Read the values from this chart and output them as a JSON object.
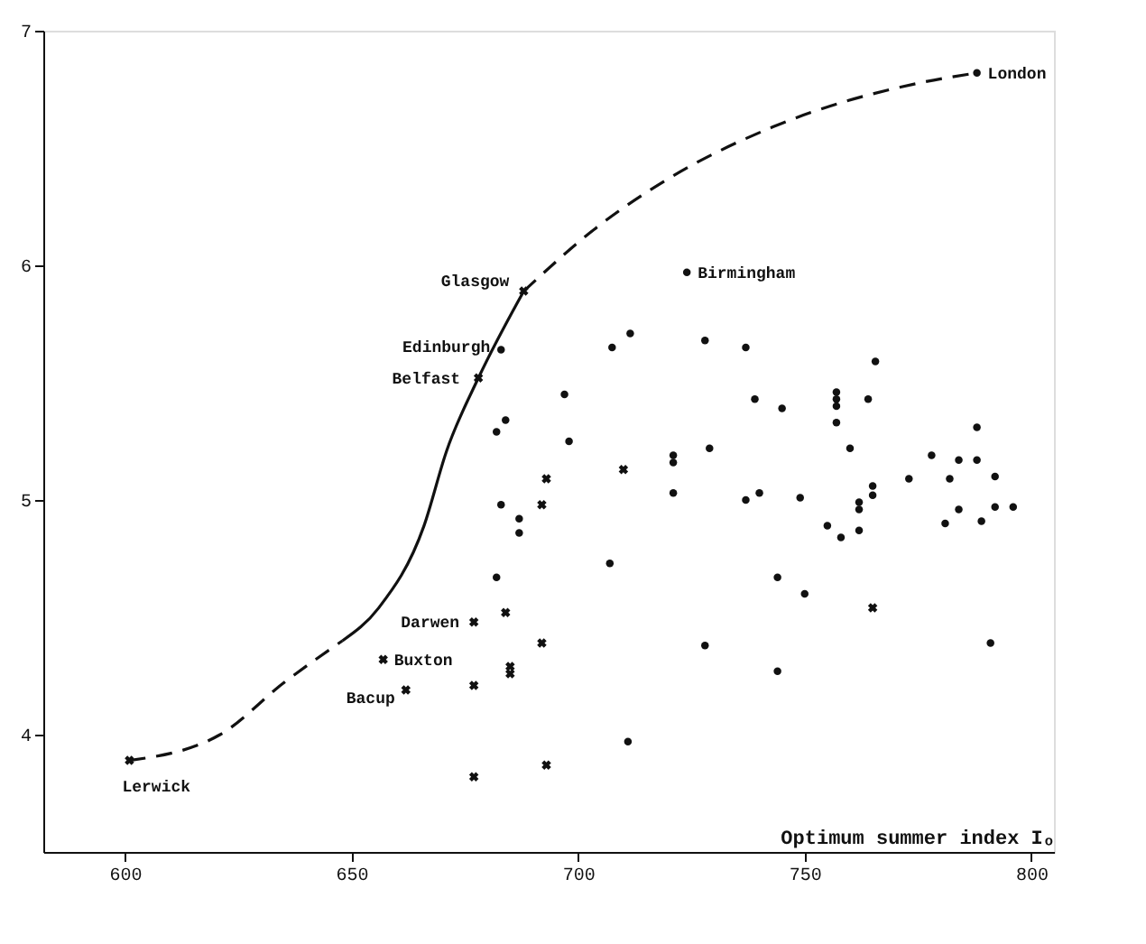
{
  "chart_data": {
    "type": "scatter",
    "xlabel": "Optimum summer index Iₒ",
    "xlim": [
      582,
      805
    ],
    "ylim": [
      3.5,
      7
    ],
    "xticks": [
      600,
      650,
      700,
      750,
      800
    ],
    "yticks": [
      4,
      5,
      6,
      7
    ],
    "grid": false,
    "series": [
      {
        "marker": "circle",
        "color": "#111111",
        "x": [
          788,
          724,
          683,
          707.5,
          711.5,
          728,
          737,
          765.6,
          697,
          739,
          745,
          757,
          757,
          757,
          764,
          757,
          682,
          684,
          698,
          788,
          721,
          721,
          729,
          760,
          778,
          683,
          687,
          687,
          682,
          721,
          737,
          740,
          749,
          755,
          758,
          762,
          762,
          762,
          765,
          765,
          773,
          782,
          781,
          784,
          788,
          784,
          789,
          792,
          792,
          796,
          791,
          707,
          711,
          728,
          744,
          744,
          750
        ],
        "values": [
          6.82,
          5.97,
          5.64,
          5.65,
          5.71,
          5.68,
          5.65,
          5.59,
          5.45,
          5.43,
          5.39,
          5.46,
          5.43,
          5.4,
          5.43,
          5.33,
          5.29,
          5.34,
          5.25,
          5.31,
          5.19,
          5.16,
          5.22,
          5.22,
          5.19,
          4.98,
          4.92,
          4.86,
          4.67,
          5.03,
          5.0,
          5.03,
          5.01,
          4.89,
          4.84,
          4.99,
          4.96,
          4.87,
          5.02,
          5.06,
          5.09,
          5.09,
          4.9,
          5.17,
          5.17,
          4.96,
          4.91,
          5.1,
          4.97,
          4.97,
          4.39,
          4.73,
          3.97,
          4.38,
          4.67,
          4.27,
          4.6
        ]
      },
      {
        "marker": "cross",
        "color": "#111111",
        "x": [
          601,
          688,
          678,
          677,
          657,
          662,
          677,
          677,
          693,
          692,
          710,
          765,
          684,
          692,
          685,
          685,
          693
        ],
        "values": [
          3.89,
          5.89,
          5.52,
          4.48,
          4.32,
          4.19,
          4.21,
          3.82,
          5.09,
          4.98,
          5.13,
          4.54,
          4.52,
          4.39,
          4.29,
          4.26,
          3.87
        ]
      },
      {
        "type": "line",
        "line_style": "dashed",
        "color": "#111111",
        "x": [
          601,
          621,
          635,
          648
        ],
        "values": [
          3.89,
          4.0,
          4.22,
          4.4
        ]
      },
      {
        "type": "line",
        "line_style": "solid",
        "color": "#111111",
        "x": [
          648,
          656,
          666,
          671,
          678,
          688
        ],
        "values": [
          4.4,
          4.54,
          4.89,
          5.21,
          5.52,
          5.89
        ]
      },
      {
        "type": "line",
        "line_style": "dashed",
        "color": "#111111",
        "x": [
          688,
          704,
          720,
          743,
          776,
          788
        ],
        "values": [
          5.89,
          6.16,
          6.37,
          6.59,
          6.78,
          6.82
        ]
      }
    ],
    "annotations": [
      {
        "text": "London",
        "x": 788,
        "y": 6.82
      },
      {
        "text": "Glasgow",
        "x": 688,
        "y": 5.89
      },
      {
        "text": "Birmingham",
        "x": 724,
        "y": 5.97
      },
      {
        "text": "Edinburgh",
        "x": 683,
        "y": 5.64
      },
      {
        "text": "Belfast",
        "x": 678,
        "y": 5.52
      },
      {
        "text": "Darwen",
        "x": 677,
        "y": 4.48
      },
      {
        "text": "Buxton",
        "x": 657,
        "y": 4.32
      },
      {
        "text": "Bacup",
        "x": 662,
        "y": 4.19
      },
      {
        "text": "Lerwick",
        "x": 601,
        "y": 3.89
      }
    ]
  }
}
